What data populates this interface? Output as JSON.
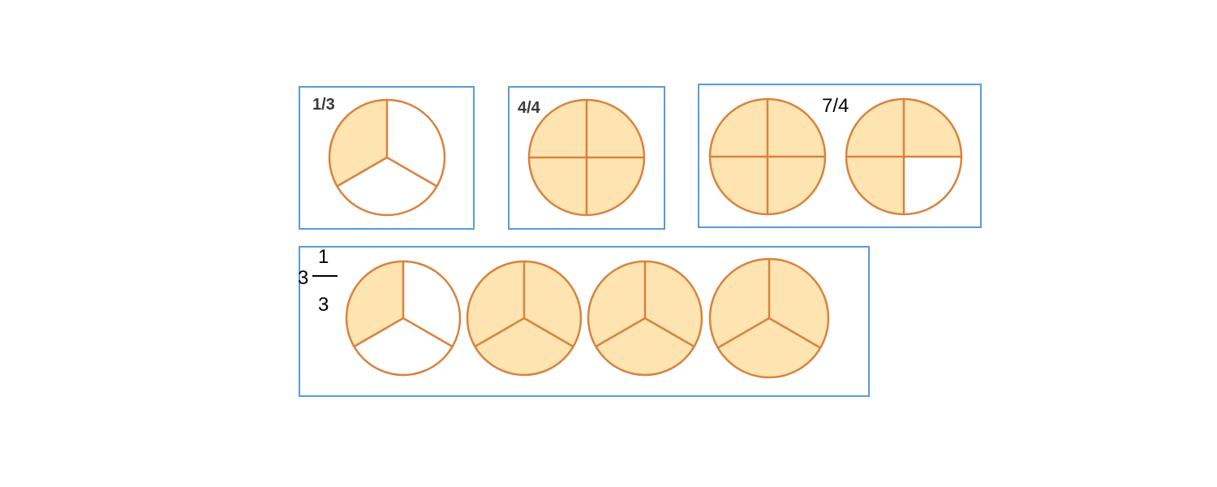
{
  "colors": {
    "frame": "#5b9bd5",
    "fill": "#fde4b0",
    "fill_light": "#f9dcab",
    "stroke": "#d9823f",
    "empty": "#ffffff"
  },
  "panels": [
    {
      "label": "1/3",
      "circles": [
        {
          "parts": 3,
          "shaded": 1
        }
      ]
    },
    {
      "label": "4/4",
      "circles": [
        {
          "parts": 4,
          "shaded": 4
        }
      ]
    },
    {
      "label": "7/4",
      "circles": [
        {
          "parts": 4,
          "shaded": 4
        },
        {
          "parts": 4,
          "shaded": 3
        }
      ]
    },
    {
      "label": {
        "whole": "3",
        "numerator": "1",
        "denominator": "3"
      },
      "circles": [
        {
          "parts": 3,
          "shaded": 1
        },
        {
          "parts": 3,
          "shaded": 3
        },
        {
          "parts": 3,
          "shaded": 3
        },
        {
          "parts": 3,
          "shaded": 3
        }
      ]
    }
  ]
}
